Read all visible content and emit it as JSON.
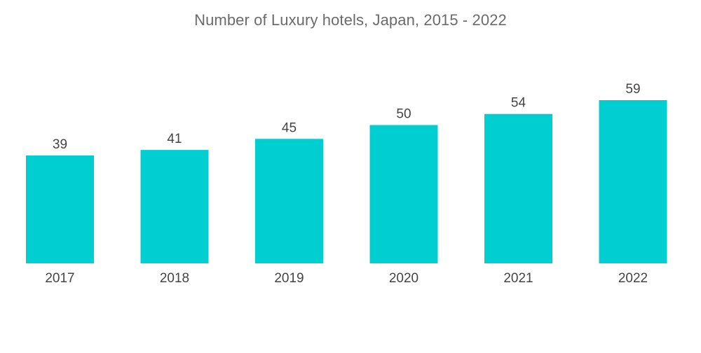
{
  "chart_data": {
    "type": "bar",
    "title": "Number of Luxury hotels, Japan, 2015 - 2022",
    "categories": [
      "2017",
      "2018",
      "2019",
      "2020",
      "2021",
      "2022"
    ],
    "values": [
      39,
      41,
      45,
      50,
      54,
      59
    ],
    "xlabel": "",
    "ylabel": "",
    "ylim": [
      0,
      59
    ],
    "grid": false,
    "legend": "none",
    "bar_color": "#00CED1"
  }
}
